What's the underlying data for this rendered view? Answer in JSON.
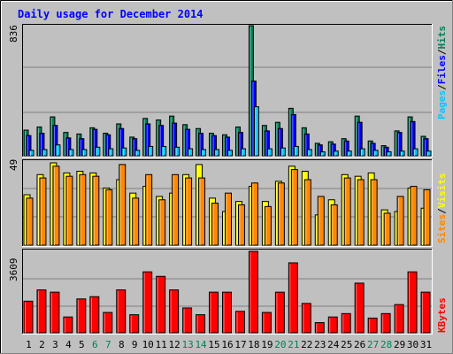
{
  "title": "Daily usage for December 2014",
  "colors": {
    "background": "#c0c0c0",
    "plot_bg": "#c0c0c0",
    "title": "#0000ff",
    "hits": "#00805a",
    "files": "#0000ff",
    "pages": "#00c8ff",
    "visits": "#ffff00",
    "sites": "#ff8800",
    "kbytes": "#ff0000",
    "weekend_day": "#00805a",
    "weekday": "#000000"
  },
  "labels": {
    "pages": "Pages",
    "files": "Files",
    "hits": "Hits",
    "sites": "Sites",
    "visits": "Visits",
    "kbytes": "KBytes",
    "sep": "/"
  },
  "chart_data": [
    {
      "type": "bar",
      "panel": "hits-files-pages",
      "axis_max_label": "836",
      "ylim": [
        0,
        836
      ],
      "categories": [
        "1",
        "2",
        "3",
        "4",
        "5",
        "6",
        "7",
        "8",
        "9",
        "10",
        "11",
        "12",
        "13",
        "14",
        "15",
        "16",
        "17",
        "18",
        "19",
        "20",
        "21",
        "22",
        "23",
        "24",
        "25",
        "26",
        "27",
        "28",
        "29",
        "30",
        "31"
      ],
      "weekend_days": [
        "6",
        "7",
        "13",
        "14",
        "20",
        "21",
        "27",
        "28"
      ],
      "series": [
        {
          "name": "Hits",
          "values": [
            165,
            185,
            250,
            150,
            140,
            180,
            145,
            205,
            120,
            240,
            230,
            255,
            200,
            175,
            145,
            135,
            185,
            836,
            195,
            215,
            305,
            180,
            80,
            90,
            110,
            255,
            95,
            65,
            160,
            250,
            125
          ]
        },
        {
          "name": "Files",
          "values": [
            130,
            145,
            195,
            115,
            110,
            170,
            135,
            175,
            110,
            205,
            195,
            210,
            170,
            145,
            130,
            120,
            150,
            480,
            160,
            175,
            265,
            140,
            70,
            75,
            95,
            215,
            80,
            55,
            150,
            220,
            110
          ]
        },
        {
          "name": "Pages",
          "values": [
            35,
            40,
            70,
            40,
            40,
            55,
            45,
            50,
            35,
            60,
            60,
            55,
            45,
            40,
            40,
            35,
            45,
            315,
            45,
            50,
            60,
            40,
            25,
            30,
            30,
            45,
            35,
            25,
            30,
            45,
            30
          ]
        }
      ]
    },
    {
      "type": "bar",
      "panel": "visits-sites",
      "axis_max_label": "49",
      "ylim": [
        0,
        49
      ],
      "categories": [
        "1",
        "2",
        "3",
        "4",
        "5",
        "6",
        "7",
        "8",
        "9",
        "10",
        "11",
        "12",
        "13",
        "14",
        "15",
        "16",
        "17",
        "18",
        "19",
        "20",
        "21",
        "22",
        "23",
        "24",
        "25",
        "26",
        "27",
        "28",
        "29",
        "30",
        "31"
      ],
      "series": [
        {
          "name": "Visits",
          "values": [
            30,
            42,
            49,
            43,
            44,
            43,
            34,
            39,
            31,
            35,
            29,
            31,
            42,
            48,
            28,
            20,
            26,
            35,
            26,
            38,
            47,
            44,
            18,
            27,
            42,
            41,
            43,
            21,
            20,
            34,
            22
          ]
        },
        {
          "name": "Sites",
          "values": [
            28,
            40,
            47,
            41,
            42,
            41,
            33,
            48,
            28,
            42,
            27,
            42,
            40,
            40,
            25,
            31,
            24,
            37,
            23,
            37,
            45,
            39,
            29,
            24,
            40,
            39,
            39,
            19,
            29,
            35,
            33
          ]
        }
      ]
    },
    {
      "type": "bar",
      "panel": "kbytes",
      "axis_max_label": "3609",
      "ylim": [
        0,
        3609
      ],
      "categories": [
        "1",
        "2",
        "3",
        "4",
        "5",
        "6",
        "7",
        "8",
        "9",
        "10",
        "11",
        "12",
        "13",
        "14",
        "15",
        "16",
        "17",
        "18",
        "19",
        "20",
        "21",
        "22",
        "23",
        "24",
        "25",
        "26",
        "27",
        "28",
        "29",
        "30",
        "31"
      ],
      "series": [
        {
          "name": "KBytes",
          "values": [
            1400,
            1900,
            1800,
            700,
            1500,
            1600,
            900,
            1900,
            800,
            2700,
            2500,
            1900,
            1100,
            800,
            1800,
            1800,
            950,
            3609,
            900,
            1800,
            3100,
            1300,
            450,
            700,
            850,
            2200,
            650,
            850,
            1250,
            2700,
            1800
          ]
        }
      ]
    }
  ]
}
